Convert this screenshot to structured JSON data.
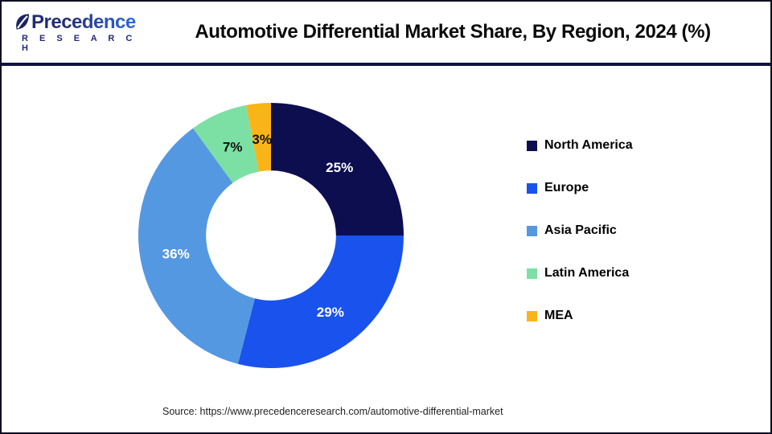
{
  "header": {
    "logo": {
      "name": "Precedence",
      "sub": "R E S E A R C H"
    },
    "title": "Automotive Differential Market Share, By Region, 2024 (%)"
  },
  "chart_data": {
    "type": "pie",
    "title": "Automotive Differential Market Share, By Region, 2024 (%)",
    "donut": true,
    "inner_radius_ratio": 0.49,
    "start_angle_deg": 0,
    "direction": "clockwise",
    "legend_position": "right",
    "categories": [
      "North America",
      "Europe",
      "Asia Pacific",
      "Latin America",
      "MEA"
    ],
    "values": [
      25,
      29,
      36,
      7,
      3
    ],
    "labels": [
      "25%",
      "29%",
      "36%",
      "7%",
      "3%"
    ],
    "colors": [
      "#0d0e4f",
      "#1a52ee",
      "#5598e2",
      "#7ce0a4",
      "#f9b517"
    ],
    "label_colors": [
      "#ffffff",
      "#ffffff",
      "#ffffff",
      "#111111",
      "#111111"
    ],
    "label_radius_ratio": 0.73
  },
  "footer": {
    "source": "Source: https://www.precedenceresearch.com/automotive-differential-market"
  }
}
